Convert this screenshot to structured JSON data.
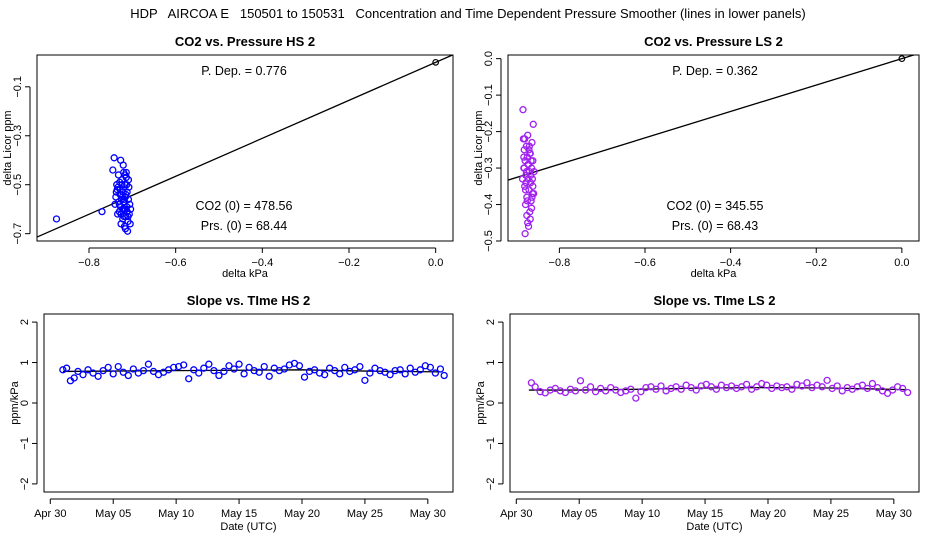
{
  "page_title": "HDP   AIRCOA E   150501 to 150531   Concentration and Time Dependent Pressure Smoother (lines in lower panels)",
  "colors": {
    "hs": "#0000ff",
    "ls": "#a020f0",
    "line": "#000000"
  },
  "chart_data": [
    {
      "type": "scatter",
      "title": "CO2 vs. Pressure HS 2",
      "xlabel": "delta kPa",
      "ylabel": "delta Licor ppm",
      "xlim": [
        -0.92,
        0.04
      ],
      "ylim": [
        -0.73,
        0.03
      ],
      "xticks": [
        -0.8,
        -0.6,
        -0.4,
        -0.2,
        0.0
      ],
      "xtick_labels": [
        "−0.8",
        "−0.6",
        "−0.4",
        "−0.2",
        "0.0"
      ],
      "yticks": [
        -0.7,
        -0.5,
        -0.3,
        -0.1
      ],
      "ytick_labels": [
        "−0.7",
        "−0.5",
        "−0.3",
        "−0.1"
      ],
      "annotations": {
        "pdep": "P. Dep. =  0.776",
        "co2_0": "CO2 (0) =  478.56",
        "prs_0": "Prs. (0) =  68.44"
      },
      "fit_line": {
        "slope": 0.776,
        "intercept": 0.0
      },
      "origin_point": [
        0.0,
        0.0
      ],
      "series": [
        {
          "x": [
            -0.875,
            -0.77,
            -0.745,
            -0.742,
            -0.738,
            -0.736,
            -0.734,
            -0.732,
            -0.73,
            -0.728,
            -0.727,
            -0.726,
            -0.725,
            -0.724,
            -0.722,
            -0.721,
            -0.72,
            -0.719,
            -0.718,
            -0.717,
            -0.716,
            -0.715,
            -0.714,
            -0.713,
            -0.712,
            -0.71,
            -0.709,
            -0.708,
            -0.707,
            -0.706,
            -0.705,
            -0.735,
            -0.731,
            -0.729,
            -0.723,
            -0.719,
            -0.717,
            -0.715,
            -0.712,
            -0.711,
            -0.733,
            -0.727,
            -0.721,
            -0.718,
            -0.716,
            -0.74,
            -0.726,
            -0.713,
            -0.709,
            -0.704,
            -0.728,
            -0.722,
            -0.72,
            -0.714,
            -0.73,
            -0.724,
            -0.719,
            -0.71,
            -0.737,
            -0.716
          ],
          "y": [
            -0.64,
            -0.61,
            -0.44,
            -0.39,
            -0.55,
            -0.5,
            -0.62,
            -0.46,
            -0.58,
            -0.52,
            -0.4,
            -0.66,
            -0.56,
            -0.48,
            -0.6,
            -0.53,
            -0.45,
            -0.63,
            -0.57,
            -0.5,
            -0.68,
            -0.54,
            -0.47,
            -0.59,
            -0.61,
            -0.65,
            -0.56,
            -0.51,
            -0.62,
            -0.58,
            -0.66,
            -0.52,
            -0.57,
            -0.49,
            -0.55,
            -0.6,
            -0.46,
            -0.63,
            -0.53,
            -0.69,
            -0.51,
            -0.59,
            -0.42,
            -0.67,
            -0.55,
            -0.58,
            -0.62,
            -0.5,
            -0.48,
            -0.6,
            -0.54,
            -0.64,
            -0.57,
            -0.45,
            -0.61,
            -0.5,
            -0.56,
            -0.63,
            -0.53,
            -0.6
          ]
        }
      ]
    },
    {
      "type": "scatter",
      "title": "CO2 vs. Pressure LS 2",
      "xlabel": "delta kPa",
      "ylabel": "delta Licor ppm",
      "xlim": [
        -0.92,
        0.04
      ],
      "ylim": [
        -0.5,
        0.01
      ],
      "xticks": [
        -0.8,
        -0.6,
        -0.4,
        -0.2,
        0.0
      ],
      "xtick_labels": [
        "−0.8",
        "−0.6",
        "−0.4",
        "−0.2",
        "0.0"
      ],
      "yticks": [
        -0.5,
        -0.4,
        -0.3,
        -0.2,
        -0.1,
        0.0
      ],
      "ytick_labels": [
        "−0.5",
        "−0.4",
        "−0.3",
        "−0.2",
        "−0.1",
        "0.0"
      ],
      "annotations": {
        "pdep": "P. Dep. =  0.362",
        "co2_0": "CO2 (0) =  345.55",
        "prs_0": "Prs. (0) =  68.43"
      },
      "fit_line": {
        "slope": 0.362,
        "intercept": 0.0
      },
      "origin_point": [
        0.0,
        0.0
      ],
      "series": [
        {
          "x": [
            -0.885,
            -0.884,
            -0.883,
            -0.882,
            -0.881,
            -0.88,
            -0.879,
            -0.878,
            -0.877,
            -0.876,
            -0.875,
            -0.874,
            -0.873,
            -0.872,
            -0.871,
            -0.87,
            -0.869,
            -0.868,
            -0.867,
            -0.866,
            -0.865,
            -0.864,
            -0.863,
            -0.862,
            -0.861,
            -0.886,
            -0.88,
            -0.874,
            -0.868,
            -0.862,
            -0.883,
            -0.877,
            -0.871,
            -0.865,
            -0.879,
            -0.873,
            -0.867,
            -0.876,
            -0.87,
            -0.864,
            -0.882,
            -0.878,
            -0.872,
            -0.866,
            -0.86,
            -0.881,
            -0.875,
            -0.869,
            -0.863,
            -0.859
          ],
          "y": [
            -0.14,
            -0.22,
            -0.3,
            -0.25,
            -0.35,
            -0.28,
            -0.4,
            -0.32,
            -0.24,
            -0.38,
            -0.27,
            -0.45,
            -0.33,
            -0.29,
            -0.36,
            -0.31,
            -0.42,
            -0.26,
            -0.34,
            -0.39,
            -0.3,
            -0.23,
            -0.37,
            -0.28,
            -0.18,
            -0.33,
            -0.48,
            -0.21,
            -0.44,
            -0.35,
            -0.27,
            -0.31,
            -0.25,
            -0.41,
            -0.36,
            -0.29,
            -0.32,
            -0.43,
            -0.24,
            -0.38,
            -0.3,
            -0.34,
            -0.46,
            -0.28,
            -0.37,
            -0.22,
            -0.39,
            -0.26,
            -0.33,
            -0.31
          ]
        }
      ]
    },
    {
      "type": "scatter",
      "title": "Slope vs. TIme HS 2",
      "xlabel": "Date (UTC)",
      "ylabel": "ppm/kPa",
      "xlim": [
        -0.5,
        32.0
      ],
      "ylim": [
        -2.2,
        2.2
      ],
      "xticks": [
        0,
        5,
        10,
        15,
        20,
        25,
        30
      ],
      "xtick_labels": [
        "Apr 30",
        "May 05",
        "May 10",
        "May 15",
        "May 20",
        "May 25",
        "May 30"
      ],
      "yticks": [
        -2,
        -1,
        0,
        1,
        2
      ],
      "ytick_labels": [
        "−2",
        "−1",
        "0",
        "1",
        "2"
      ],
      "smoother": {
        "x": [
          1,
          5,
          10,
          15,
          20,
          25,
          31
        ],
        "y": [
          0.78,
          0.79,
          0.8,
          0.81,
          0.82,
          0.79,
          0.77
        ]
      },
      "series": [
        {
          "x": [
            1.0,
            1.3,
            1.6,
            1.9,
            2.2,
            2.6,
            3.0,
            3.4,
            3.8,
            4.2,
            4.6,
            5.0,
            5.4,
            5.8,
            6.2,
            6.6,
            7.0,
            7.4,
            7.8,
            8.2,
            8.6,
            9.0,
            9.4,
            9.8,
            10.2,
            10.6,
            11.0,
            11.4,
            11.8,
            12.2,
            12.6,
            13.0,
            13.4,
            13.8,
            14.2,
            14.6,
            15.0,
            15.4,
            15.8,
            16.2,
            16.6,
            17.0,
            17.4,
            17.8,
            18.2,
            18.6,
            19.0,
            19.4,
            19.8,
            20.2,
            20.6,
            21.0,
            21.4,
            21.8,
            22.2,
            22.6,
            23.0,
            23.4,
            23.8,
            24.2,
            24.6,
            25.0,
            25.4,
            25.8,
            26.2,
            26.6,
            27.0,
            27.4,
            27.8,
            28.2,
            28.6,
            29.0,
            29.4,
            29.8,
            30.2,
            30.6,
            31.0,
            31.3
          ],
          "y": [
            0.82,
            0.86,
            0.55,
            0.62,
            0.78,
            0.7,
            0.82,
            0.74,
            0.66,
            0.8,
            0.88,
            0.72,
            0.9,
            0.76,
            0.68,
            0.84,
            0.74,
            0.8,
            0.96,
            0.78,
            0.7,
            0.76,
            0.82,
            0.88,
            0.9,
            0.94,
            0.6,
            0.82,
            0.74,
            0.86,
            0.96,
            0.8,
            0.68,
            0.78,
            0.92,
            0.84,
            0.96,
            0.72,
            0.88,
            0.8,
            0.76,
            0.9,
            0.66,
            0.86,
            0.8,
            0.84,
            0.94,
            0.98,
            0.92,
            0.64,
            0.78,
            0.82,
            0.74,
            0.7,
            0.86,
            0.8,
            0.72,
            0.88,
            0.78,
            0.82,
            0.9,
            0.56,
            0.74,
            0.86,
            0.8,
            0.76,
            0.7,
            0.8,
            0.82,
            0.72,
            0.86,
            0.76,
            0.82,
            0.92,
            0.88,
            0.74,
            0.84,
            0.68
          ]
        }
      ]
    },
    {
      "type": "scatter",
      "title": "Slope vs. TIme LS 2",
      "xlabel": "Date (UTC)",
      "ylabel": "ppm/kPa",
      "xlim": [
        -0.5,
        32.0
      ],
      "ylim": [
        -2.2,
        2.2
      ],
      "xticks": [
        0,
        5,
        10,
        15,
        20,
        25,
        30
      ],
      "xtick_labels": [
        "Apr 30",
        "May 05",
        "May 10",
        "May 15",
        "May 20",
        "May 25",
        "May 30"
      ],
      "yticks": [
        -2,
        -1,
        0,
        1,
        2
      ],
      "ytick_labels": [
        "−2",
        "−1",
        "0",
        "1",
        "2"
      ],
      "smoother": {
        "x": [
          1,
          5,
          10,
          15,
          20,
          25,
          31
        ],
        "y": [
          0.32,
          0.32,
          0.34,
          0.37,
          0.38,
          0.37,
          0.33
        ]
      },
      "series": [
        {
          "x": [
            1.2,
            1.5,
            1.9,
            2.3,
            2.7,
            3.1,
            3.5,
            3.9,
            4.3,
            4.7,
            5.1,
            5.5,
            5.9,
            6.3,
            6.7,
            7.1,
            7.5,
            7.9,
            8.3,
            8.7,
            9.1,
            9.5,
            9.9,
            10.3,
            10.7,
            11.1,
            11.5,
            11.9,
            12.3,
            12.7,
            13.1,
            13.5,
            13.9,
            14.3,
            14.7,
            15.1,
            15.5,
            15.9,
            16.3,
            16.7,
            17.1,
            17.5,
            17.9,
            18.3,
            18.7,
            19.1,
            19.5,
            19.9,
            20.3,
            20.7,
            21.1,
            21.5,
            21.9,
            22.3,
            22.7,
            23.1,
            23.5,
            23.9,
            24.3,
            24.7,
            25.1,
            25.5,
            25.9,
            26.3,
            26.7,
            27.1,
            27.5,
            27.9,
            28.3,
            28.7,
            29.1,
            29.5,
            29.9,
            30.3,
            30.7,
            31.1
          ],
          "y": [
            0.5,
            0.4,
            0.28,
            0.25,
            0.32,
            0.36,
            0.3,
            0.26,
            0.34,
            0.3,
            0.55,
            0.32,
            0.4,
            0.28,
            0.36,
            0.3,
            0.38,
            0.32,
            0.26,
            0.3,
            0.34,
            0.12,
            0.28,
            0.38,
            0.4,
            0.34,
            0.42,
            0.3,
            0.36,
            0.4,
            0.34,
            0.44,
            0.38,
            0.32,
            0.42,
            0.46,
            0.4,
            0.34,
            0.44,
            0.38,
            0.42,
            0.36,
            0.4,
            0.46,
            0.34,
            0.4,
            0.48,
            0.44,
            0.36,
            0.42,
            0.38,
            0.4,
            0.34,
            0.46,
            0.42,
            0.5,
            0.38,
            0.44,
            0.4,
            0.56,
            0.36,
            0.42,
            0.3,
            0.38,
            0.34,
            0.4,
            0.44,
            0.36,
            0.48,
            0.38,
            0.3,
            0.24,
            0.32,
            0.4,
            0.36,
            0.26
          ]
        }
      ]
    }
  ]
}
